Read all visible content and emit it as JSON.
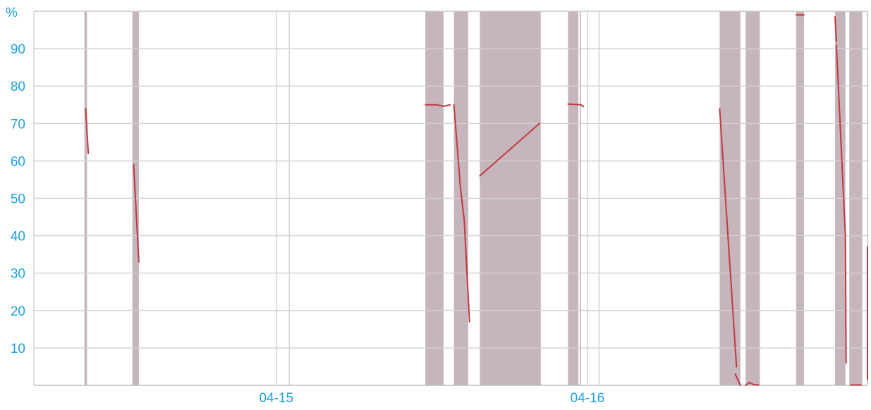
{
  "chart_data": {
    "type": "line",
    "title": "",
    "xlabel": "",
    "ylabel": "%",
    "ylim": [
      0,
      100
    ],
    "xlim_hours": [
      -18.7,
      45.6
    ],
    "y_ticks": [
      10,
      20,
      30,
      40,
      50,
      60,
      70,
      80,
      90
    ],
    "x_ticks": [
      {
        "label": "04-15",
        "hour": 0
      },
      {
        "label": "04-16",
        "hour": 24
      }
    ],
    "x_unit": "hours from 04-15 00:00",
    "grid": true,
    "colors": {
      "line": "#c0393f",
      "band": "#c6b5bc",
      "axis_label": "#1ea0e0",
      "grid": "#d0d0d0"
    },
    "series": [
      {
        "segments": [
          [
            [
              -14.7,
              74
            ],
            [
              -14.5,
              62
            ]
          ],
          [
            [
              -11.0,
              59
            ],
            [
              -10.6,
              33
            ]
          ],
          [
            [
              11.5,
              75
            ],
            [
              12.4,
              75
            ],
            [
              12.9,
              74.6
            ],
            [
              13.4,
              75
            ]
          ],
          [
            [
              13.7,
              75
            ],
            [
              14.2,
              53
            ],
            [
              14.5,
              44
            ],
            [
              14.9,
              17
            ]
          ],
          [
            [
              15.7,
              56
            ],
            [
              20.3,
              70
            ]
          ],
          [
            [
              22.5,
              75.2
            ],
            [
              23.5,
              75
            ],
            [
              23.7,
              74.5
            ]
          ],
          [
            [
              34.2,
              74
            ],
            [
              35.5,
              5
            ]
          ],
          [
            [
              35.4,
              3
            ],
            [
              35.8,
              0
            ]
          ],
          [
            [
              36.2,
              0
            ],
            [
              36.5,
              0.8
            ],
            [
              36.8,
              0.2
            ],
            [
              37.2,
              0.1
            ]
          ],
          [
            [
              40.1,
              99
            ],
            [
              40.7,
              99
            ]
          ],
          [
            [
              43.1,
              98.5
            ],
            [
              43.2,
              92
            ]
          ],
          [
            [
              43.2,
              91
            ],
            [
              43.9,
              40
            ],
            [
              43.95,
              6
            ]
          ],
          [
            [
              44.3,
              0.1
            ],
            [
              45.1,
              0.1
            ]
          ],
          [
            [
              45.8,
              1.5
            ],
            [
              46.4,
              37
            ]
          ]
        ]
      }
    ],
    "bands": [
      [
        -14.8,
        -14.6
      ],
      [
        -11.1,
        -10.6
      ],
      [
        11.5,
        12.9
      ],
      [
        13.7,
        14.8
      ],
      [
        15.7,
        20.4
      ],
      [
        22.5,
        23.3
      ],
      [
        23.4,
        23.5
      ],
      [
        34.2,
        35.8
      ],
      [
        36.2,
        37.3
      ],
      [
        40.1,
        40.7
      ],
      [
        43.1,
        43.9
      ],
      [
        44.2,
        45.2
      ],
      [
        45.7,
        46.3
      ]
    ],
    "band_lines": [
      1,
      24.9
    ]
  }
}
